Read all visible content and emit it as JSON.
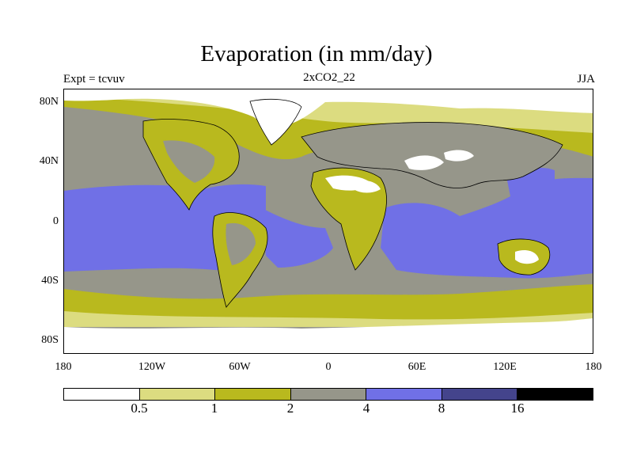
{
  "title": "Evaporation (in mm/day)",
  "left_label": "Expt = tcvuv",
  "center_label": "2xCO2_22",
  "right_label": "JJA",
  "lat_ticks": [
    "80N",
    "40N",
    "0",
    "40S",
    "80S"
  ],
  "lon_ticks": [
    "180",
    "120W",
    "60W",
    "0",
    "60E",
    "120E",
    "180"
  ],
  "colorbar": {
    "levels": [
      "0.5",
      "1",
      "2",
      "4",
      "8",
      "16"
    ],
    "colors": [
      "#ffffff",
      "#dcdc80",
      "#b9b91e",
      "#96968a",
      "#7070e6",
      "#44448c",
      "#000000"
    ]
  }
}
